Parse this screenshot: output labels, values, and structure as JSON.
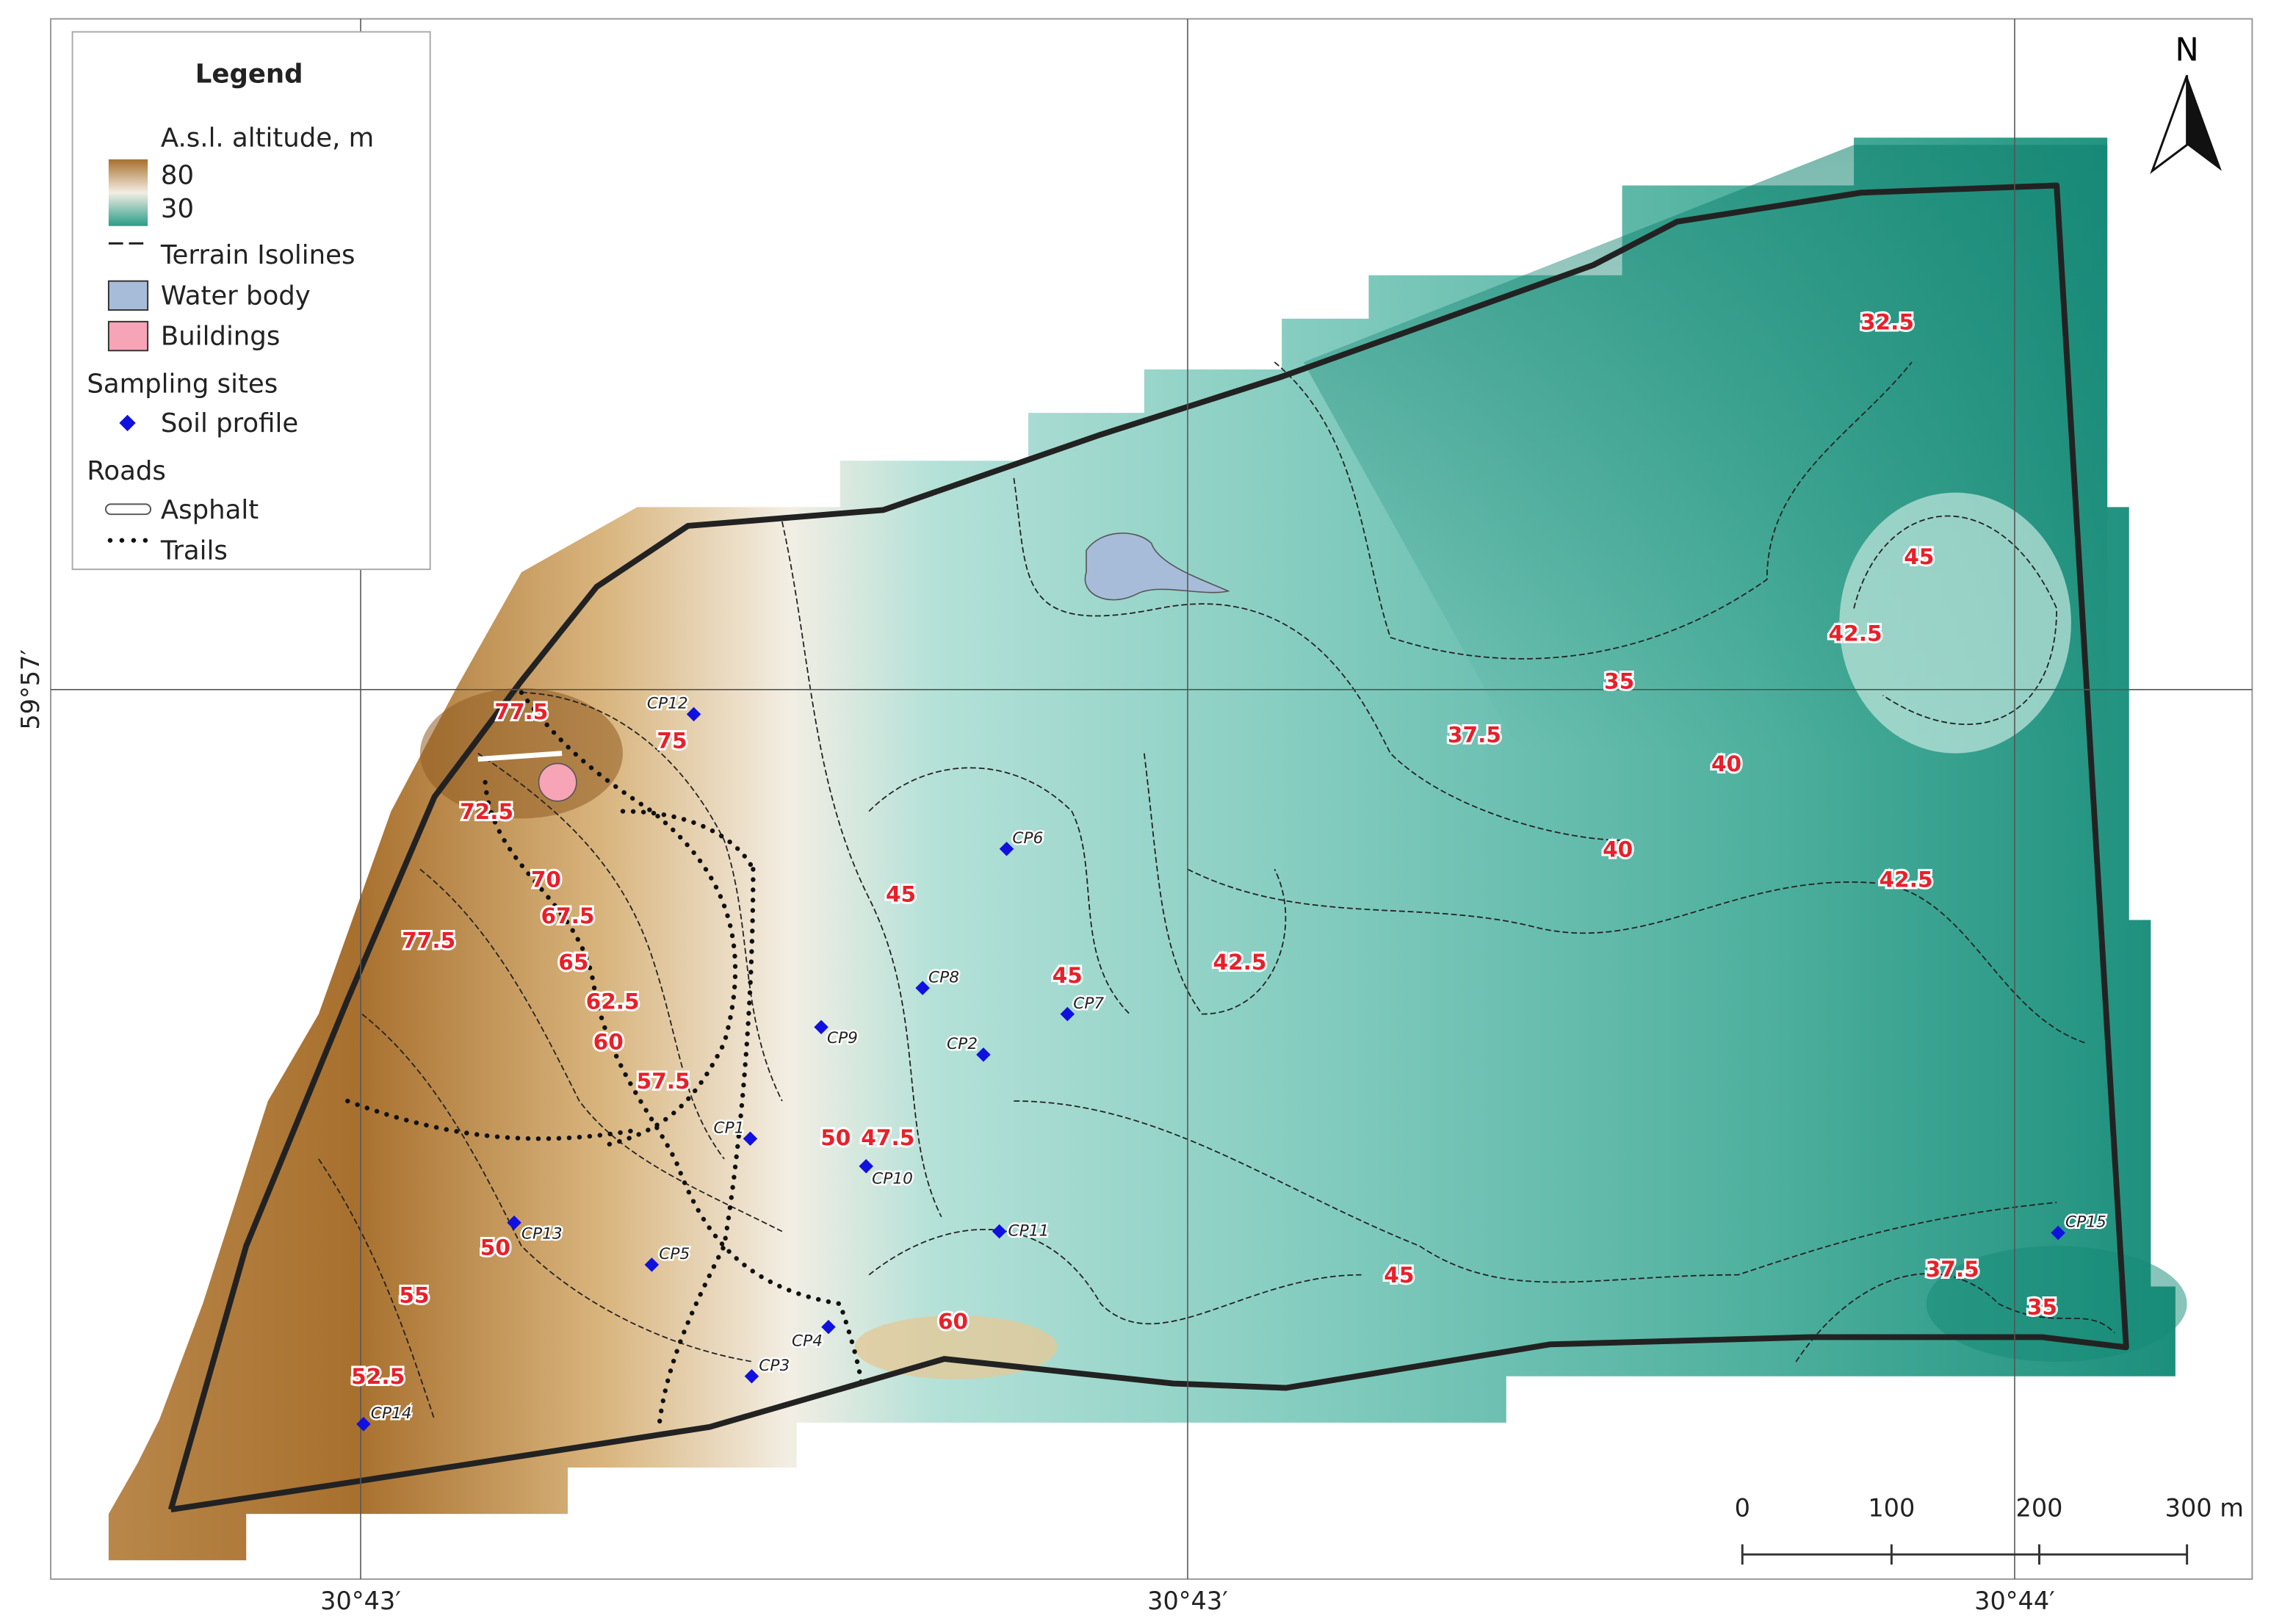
{
  "legend": {
    "title": "Legend",
    "altitude_title": "A.s.l. altitude, m",
    "altitude_max": "80",
    "altitude_min": "30",
    "items": [
      "Terrain Isolines",
      "Water body",
      "Buildings"
    ],
    "sampling_title": "Sampling sites",
    "sampling_items": [
      "Soil profile"
    ],
    "roads_title": "Roads",
    "roads_items": [
      "Asphalt",
      "Trails"
    ]
  },
  "north": "N",
  "coordinates": {
    "latitude": [
      "59°57′"
    ],
    "longitude": [
      "30°43′",
      "30°43′",
      "30°44′"
    ]
  },
  "scale_bar": {
    "labels": [
      "0",
      "100",
      "200",
      "300 m"
    ]
  },
  "contour_labels": [
    "77.5",
    "75",
    "72.5",
    "70",
    "67.5",
    "77.5",
    "65",
    "62.5",
    "60",
    "57.5",
    "50",
    "47.5",
    "45",
    "45",
    "42.5",
    "37.5",
    "35",
    "40",
    "40",
    "42.5",
    "32.5",
    "45",
    "42.5",
    "50",
    "55",
    "52.5",
    "60",
    "45",
    "37.5",
    "35"
  ],
  "sites": [
    "CP12",
    "CP6",
    "CP8",
    "CP7",
    "CP9",
    "CP2",
    "CP1",
    "CP10",
    "CP11",
    "CP13",
    "CP5",
    "CP4",
    "CP3",
    "CP14",
    "CP15"
  ]
}
